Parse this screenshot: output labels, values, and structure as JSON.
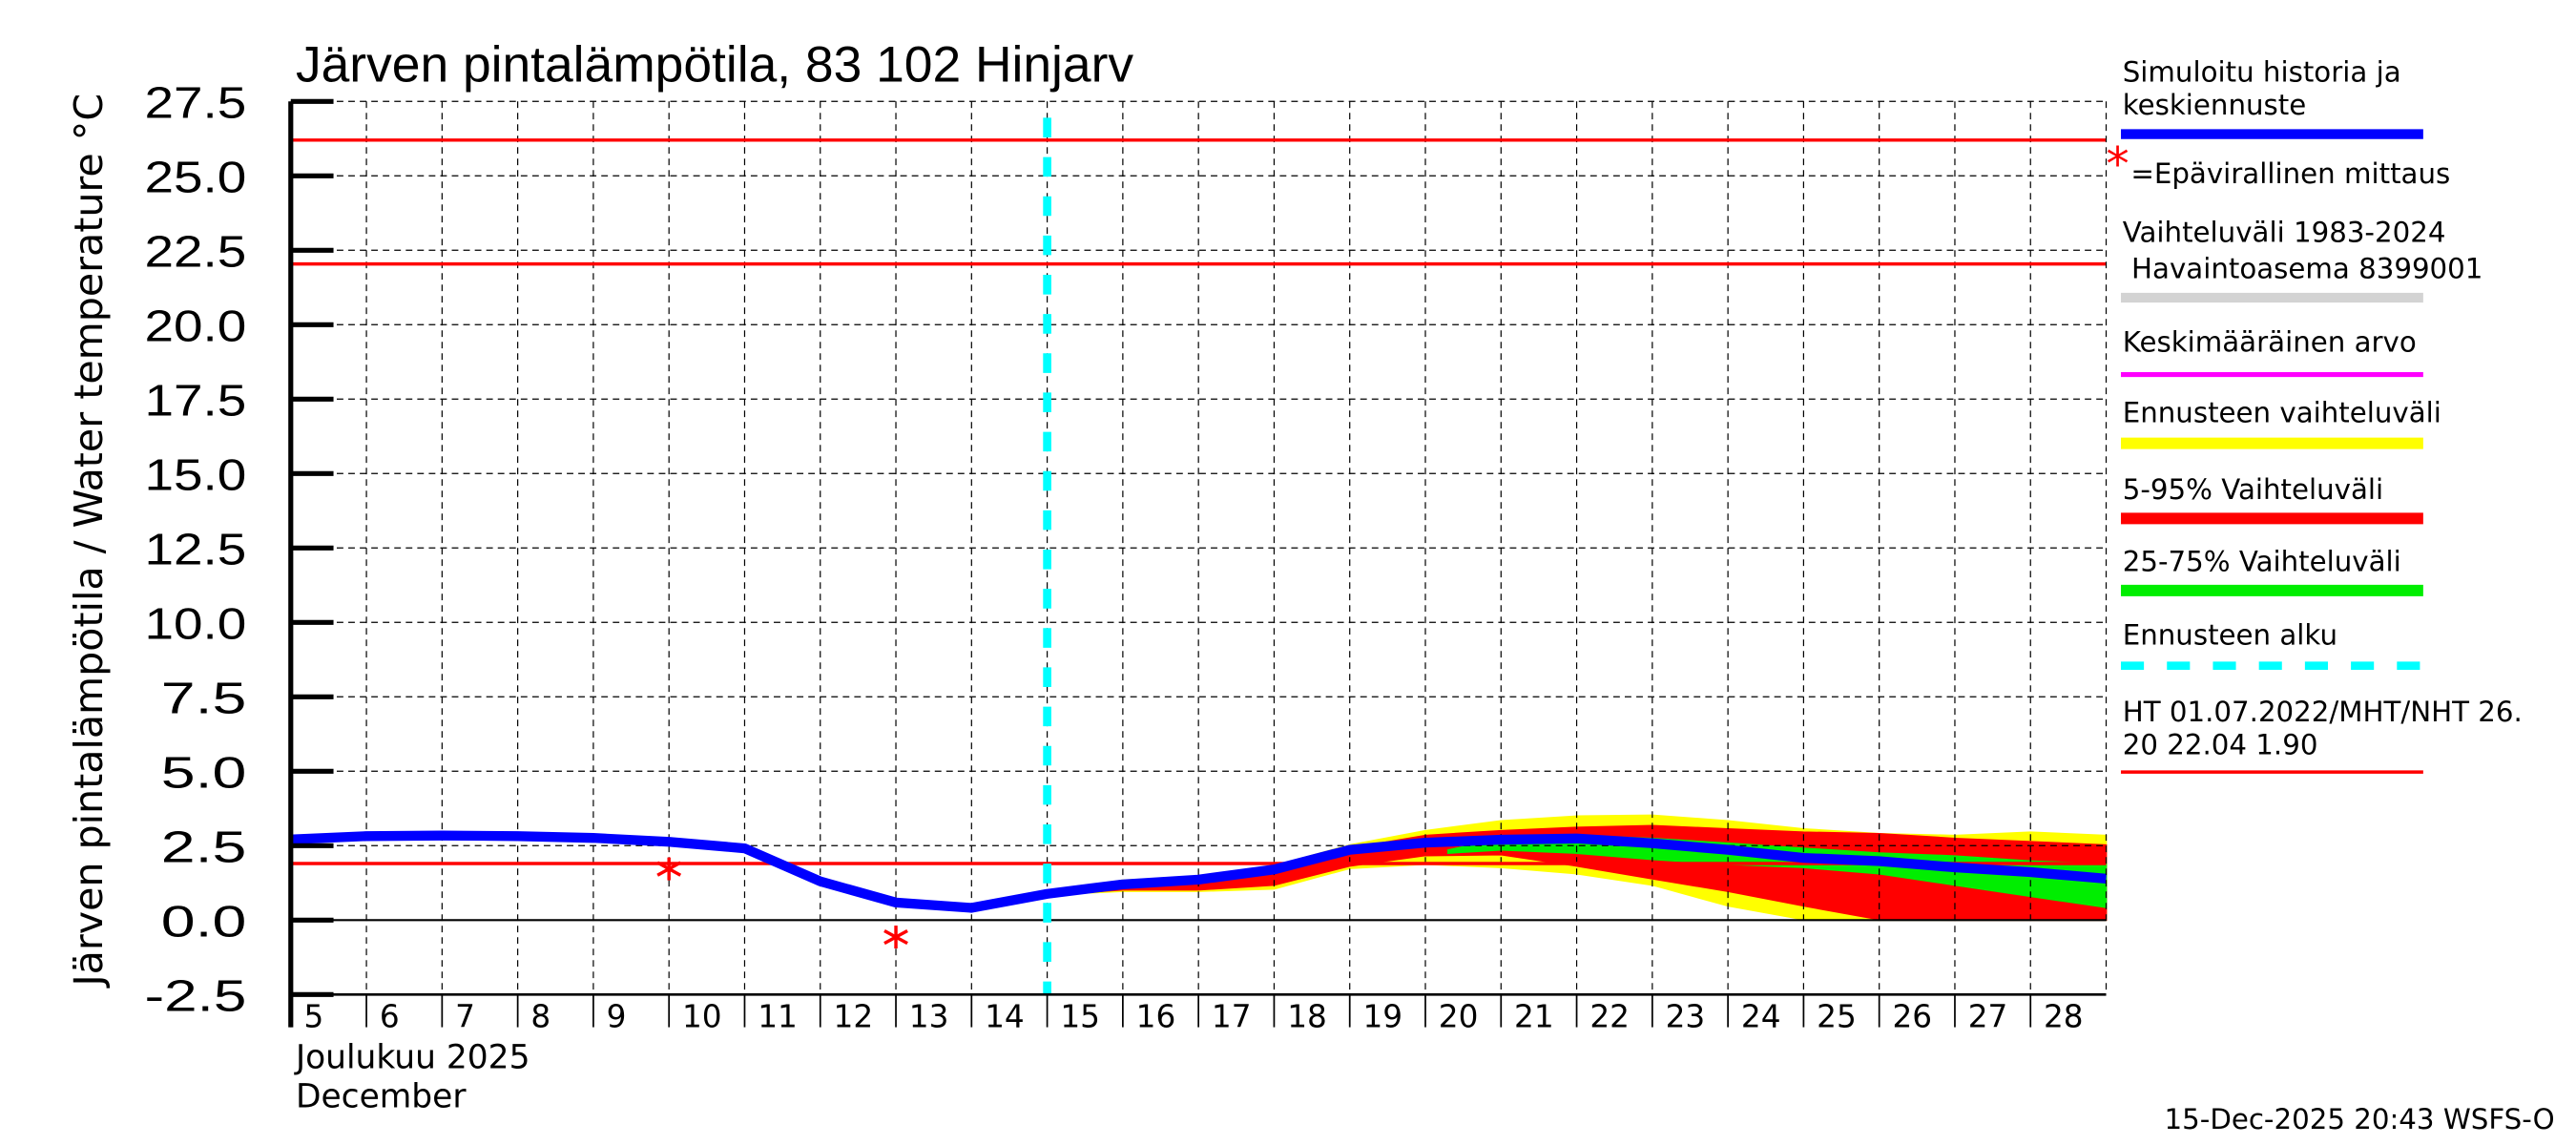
{
  "chart_data": {
    "type": "area",
    "title": "Järven pintalämpötila, 83 102 Hinjarv",
    "ylabel": "Järven pintalämpötila / Water temperature °C",
    "xlabel_fi": "Joulukuu  2025",
    "xlabel_en": "December",
    "footer": "15-Dec-2025 20:43 WSFS-O",
    "ylim": [
      -2.5,
      27.5
    ],
    "xlim": [
      5,
      29
    ],
    "grid": true,
    "legend_position": "right",
    "y_ticks": [
      "-2.5",
      "0.0",
      "2.5",
      "5.0",
      "7.5",
      "10.0",
      "12.5",
      "15.0",
      "17.5",
      "20.0",
      "22.5",
      "25.0",
      "27.5"
    ],
    "x_ticks": [
      "5",
      "6",
      "7",
      "8",
      "9",
      "10",
      "11",
      "12",
      "13",
      "14",
      "15",
      "16",
      "17",
      "18",
      "19",
      "20",
      "21",
      "22",
      "23",
      "24",
      "25",
      "26",
      "27",
      "28"
    ],
    "forecast_start_day": 15,
    "reference_lines": [
      {
        "name": "HT",
        "value": 26.2
      },
      {
        "name": "MHT",
        "value": 22.04
      },
      {
        "name": "NHT",
        "value": 1.9
      }
    ],
    "unofficial_measurements": [
      {
        "day": 10,
        "value": 1.72
      },
      {
        "day": 13,
        "value": -0.57
      }
    ],
    "series": [
      {
        "name": "Simuloitu historia ja keskiennuste",
        "color": "#0000ff",
        "x": [
          5,
          6,
          7,
          8,
          9,
          10,
          11,
          12,
          13,
          14,
          15,
          16,
          17,
          18,
          19,
          20,
          21,
          22,
          23,
          24,
          25,
          26,
          27,
          28,
          29
        ],
        "values": [
          2.71,
          2.82,
          2.84,
          2.82,
          2.76,
          2.63,
          2.41,
          1.3,
          0.59,
          0.41,
          0.88,
          1.2,
          1.36,
          1.7,
          2.36,
          2.6,
          2.7,
          2.74,
          2.58,
          2.36,
          2.09,
          1.98,
          1.77,
          1.61,
          1.39
        ]
      },
      {
        "name": "Ennusteen vaihteluväli",
        "color": "#ffff00",
        "x": [
          15,
          16,
          17,
          18,
          19,
          20,
          21,
          22,
          23,
          24,
          25,
          26,
          27,
          28,
          29
        ],
        "upper": [
          0.9,
          1.34,
          1.45,
          1.82,
          2.52,
          3.0,
          3.33,
          3.49,
          3.52,
          3.33,
          3.06,
          2.9,
          2.84,
          2.95,
          2.84
        ],
        "lower": [
          0.85,
          0.97,
          0.97,
          1.05,
          1.74,
          1.88,
          1.77,
          1.56,
          1.18,
          0.48,
          0.02,
          0,
          0,
          0,
          0
        ]
      },
      {
        "name": "5-95% Vaihteluväli",
        "color": "#ff0000",
        "x": [
          15,
          16,
          17,
          18,
          19,
          20,
          21,
          22,
          23,
          24,
          25,
          26,
          27,
          28,
          29
        ],
        "upper": [
          0.9,
          1.29,
          1.39,
          1.72,
          2.41,
          2.84,
          3.0,
          3.11,
          3.17,
          3.06,
          2.95,
          2.9,
          2.74,
          2.63,
          2.52
        ],
        "lower": [
          0.85,
          1.02,
          1.02,
          1.18,
          1.82,
          2.17,
          2.2,
          1.82,
          1.39,
          0.97,
          0.48,
          0.02,
          0,
          0,
          0
        ]
      },
      {
        "name": "25-75% Vaihteluväli",
        "color": "#00ee00",
        "x": [
          20.3,
          21,
          22,
          23,
          24,
          25,
          26,
          27,
          28,
          29
        ],
        "upper": [
          2.35,
          2.74,
          2.84,
          2.74,
          2.58,
          2.41,
          2.25,
          2.15,
          1.98,
          1.88
        ],
        "lower": [
          2.25,
          2.36,
          2.25,
          2.04,
          1.88,
          1.77,
          1.56,
          1.18,
          0.8,
          0.43
        ]
      }
    ]
  },
  "legend": {
    "sim_line1": "Simuloitu historia ja",
    "sim_line2": "keskiennuste",
    "unofficial": "=Epävirallinen mittaus",
    "range_line1": "Vaihteluväli 1983-2024",
    "range_line2": " Havaintoasema 8399001",
    "mean": "Keskimääräinen arvo",
    "forecast_range": "Ennusteen vaihteluväli",
    "p5_95": "5-95% Vaihteluväli",
    "p25_75": "25-75% Vaihteluväli",
    "forecast_start": "Ennusteen alku",
    "ht_line1": "HT 01.07.2022/MHT/NHT 26.",
    "ht_line2": "20 22.04 1.90",
    "colors": {
      "sim": "#0000ff",
      "star": "#ff0000",
      "range": "#d3d3d3",
      "mean": "#ff00ff",
      "forecast_range": "#ffff00",
      "p5_95": "#ff0000",
      "p25_75": "#00ee00",
      "forecast_start": "#00ffff",
      "ht": "#ff0000"
    }
  }
}
